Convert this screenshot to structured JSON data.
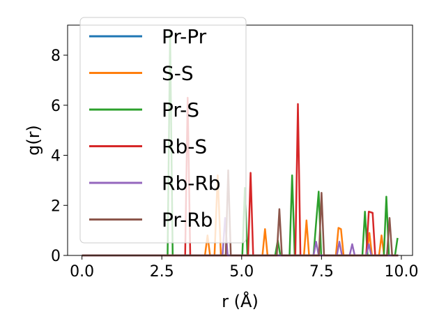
{
  "chart_data": {
    "type": "line",
    "xlabel": "r (Å)",
    "ylabel": "g(r)",
    "xlim": [
      -0.45,
      10.35
    ],
    "ylim": [
      0,
      9.2
    ],
    "xticks": [
      0.0,
      2.5,
      5.0,
      7.5,
      10.0
    ],
    "xtick_labels": [
      "0.0",
      "2.5",
      "5.0",
      "7.5",
      "10.0"
    ],
    "yticks": [
      0,
      2,
      4,
      6,
      8
    ],
    "ytick_labels": [
      "0",
      "2",
      "4",
      "6",
      "8"
    ],
    "grid": false,
    "legend_position": "upper left",
    "series": [
      {
        "name": "Pr-Pr",
        "color": "#1f77b4",
        "x": [
          0.0,
          9.9
        ],
        "y": [
          0.0,
          0.0
        ]
      },
      {
        "name": "S-S",
        "color": "#ff7f0e",
        "x": [
          0.0,
          3.85,
          3.93,
          4.01,
          4.15,
          4.25,
          4.35,
          4.45,
          5.65,
          5.73,
          5.81,
          6.95,
          7.03,
          7.11,
          7.95,
          8.03,
          8.11,
          8.19,
          8.92,
          9.0,
          9.08,
          9.3,
          9.38,
          9.46,
          9.9
        ],
        "y": [
          0.0,
          0.0,
          0.8,
          0.0,
          0.0,
          3.2,
          0.0,
          0.0,
          0.0,
          1.05,
          0.0,
          0.0,
          1.4,
          0.0,
          0.0,
          1.1,
          1.05,
          0.0,
          0.0,
          0.9,
          0.0,
          0.0,
          0.8,
          0.0,
          0.0
        ]
      },
      {
        "name": "Pr-S",
        "color": "#2ca02c",
        "x": [
          0.0,
          2.68,
          2.76,
          2.84,
          5.02,
          5.1,
          5.18,
          6.05,
          6.13,
          6.21,
          6.5,
          6.58,
          6.66,
          7.25,
          7.33,
          7.41,
          7.49,
          8.78,
          8.86,
          8.94,
          9.45,
          9.53,
          9.61,
          9.8,
          9.88
        ],
        "y": [
          0.0,
          0.0,
          8.9,
          0.0,
          0.0,
          2.7,
          0.0,
          0.0,
          0.6,
          0.0,
          0.0,
          3.2,
          0.0,
          0.0,
          1.3,
          2.55,
          0.0,
          0.0,
          1.75,
          0.0,
          0.0,
          2.35,
          0.0,
          0.0,
          0.7
        ]
      },
      {
        "name": "Rb-S",
        "color": "#d62728",
        "x": [
          0.0,
          3.23,
          3.31,
          3.39,
          5.2,
          5.28,
          5.36,
          6.68,
          6.76,
          6.84,
          8.9,
          8.98,
          9.1,
          9.18,
          9.9
        ],
        "y": [
          0.0,
          0.0,
          6.3,
          0.0,
          0.0,
          3.3,
          0.0,
          0.0,
          6.05,
          0.0,
          0.0,
          1.75,
          1.7,
          0.0,
          0.0
        ]
      },
      {
        "name": "Rb-Rb",
        "color": "#9467bd",
        "x": [
          0.0,
          4.4,
          4.48,
          4.56,
          7.25,
          7.33,
          7.41,
          7.98,
          8.06,
          8.14,
          8.38,
          8.46,
          8.54,
          8.9,
          8.98,
          9.06,
          9.9
        ],
        "y": [
          0.0,
          0.0,
          1.5,
          0.0,
          0.0,
          0.55,
          0.0,
          0.0,
          0.55,
          0.0,
          0.0,
          0.45,
          0.0,
          0.0,
          0.45,
          0.0,
          0.0
        ]
      },
      {
        "name": "Pr-Rb",
        "color": "#8c564b",
        "x": [
          0.0,
          4.5,
          4.58,
          4.66,
          6.1,
          6.18,
          6.26,
          7.42,
          7.5,
          7.58,
          9.55,
          9.63,
          9.71,
          9.9
        ],
        "y": [
          0.0,
          0.0,
          3.4,
          0.0,
          0.0,
          1.85,
          0.0,
          0.0,
          2.5,
          0.0,
          0.0,
          1.5,
          0.0,
          0.0
        ]
      }
    ]
  }
}
